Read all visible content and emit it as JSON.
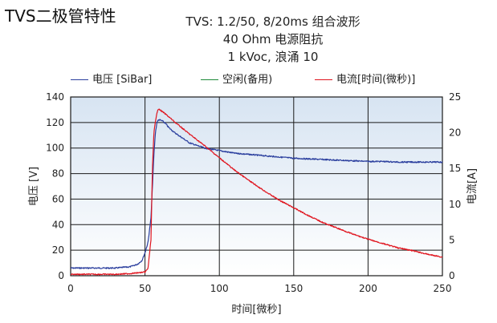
{
  "page_title": "TVS二极管特性",
  "chart_data": {
    "type": "line",
    "title_lines": [
      "TVS: 1.2/50, 8/20ms 组合波形",
      "40 Ohm 电源阻抗",
      "1 kVoc, 浪涌 10"
    ],
    "xlabel": "时间[微秒]",
    "ylabel_left": "电压 [V]",
    "ylabel_right": "电流[A]",
    "xlim": [
      0,
      250
    ],
    "ylim_left": [
      0,
      140
    ],
    "ylim_right": [
      0,
      25
    ],
    "x_ticks": [
      "0",
      "50",
      "100",
      "150",
      "200",
      "250"
    ],
    "y_ticks_left": [
      "0",
      "20",
      "40",
      "60",
      "80",
      "100",
      "120",
      "140"
    ],
    "y_ticks_right": [
      "0",
      "5",
      "10",
      "15",
      "20",
      "25"
    ],
    "grid": true,
    "legend_position": "top",
    "series": [
      {
        "name": "电压 [SiBar]",
        "axis": "left",
        "color": "#2b3f9e",
        "x": [
          0,
          10,
          20,
          30,
          40,
          45,
          48,
          50,
          52,
          54,
          56,
          57,
          58,
          59,
          60,
          62,
          64,
          66,
          70,
          75,
          80,
          90,
          100,
          110,
          120,
          130,
          140,
          150,
          160,
          170,
          180,
          190,
          200,
          210,
          220,
          230,
          240,
          250
        ],
        "y": [
          6,
          6,
          6,
          6,
          7,
          9,
          12,
          18,
          26,
          45,
          95,
          112,
          120,
          122,
          122,
          121,
          119,
          116,
          112,
          108,
          104,
          100,
          98,
          96,
          95,
          94,
          93,
          92,
          91.5,
          91,
          90.5,
          90,
          89.5,
          89.5,
          89,
          89,
          89,
          89
        ]
      },
      {
        "name": "空闲(备用)",
        "axis": "left",
        "color": "#1e8a3a",
        "x": [],
        "y": []
      },
      {
        "name": "电流[时间(微秒)]",
        "axis": "right",
        "color": "#e0141e",
        "x": [
          0,
          10,
          20,
          30,
          40,
          45,
          50,
          52,
          54,
          55,
          56,
          57,
          58,
          59,
          60,
          62,
          65,
          70,
          80,
          90,
          100,
          110,
          120,
          130,
          140,
          150,
          160,
          170,
          180,
          190,
          200,
          210,
          220,
          230,
          240,
          250
        ],
        "y": [
          0.2,
          0.2,
          0.2,
          0.2,
          0.3,
          0.4,
          0.5,
          1,
          5,
          15,
          20,
          21.6,
          22.8,
          23.3,
          23.2,
          22.9,
          22.4,
          21.5,
          19.8,
          18.2,
          16.5,
          14.8,
          13.3,
          11.9,
          10.6,
          9.5,
          8.4,
          7.4,
          6.6,
          5.8,
          5.1,
          4.5,
          3.9,
          3.5,
          3.0,
          2.6
        ]
      }
    ]
  },
  "colors": {
    "plot_background_top": "#d7e4f2",
    "plot_background_bottom": "#ffffff",
    "grid": "#1a1a1a"
  }
}
